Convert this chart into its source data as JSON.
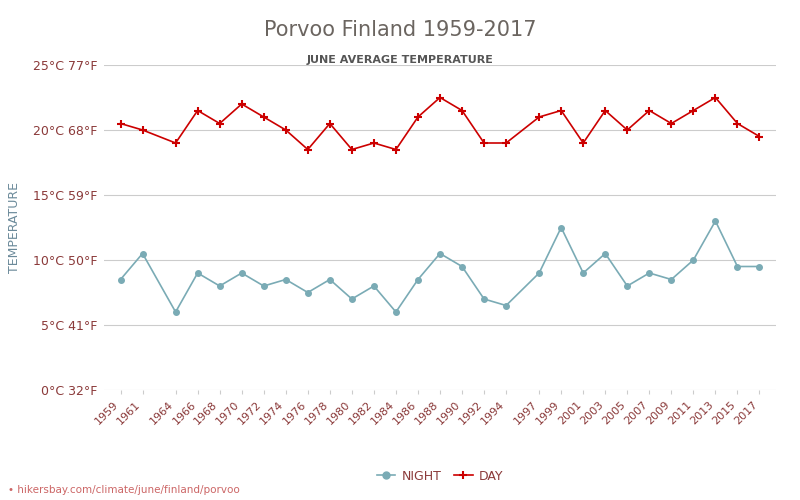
{
  "title": "Porvoo Finland 1959-2017",
  "subtitle": "JUNE AVERAGE TEMPERATURE",
  "ylabel": "TEMPERATURE",
  "footer": "hikersbay.com/climate/june/finland/porvoo",
  "years": [
    1959,
    1961,
    1964,
    1966,
    1968,
    1970,
    1972,
    1974,
    1976,
    1978,
    1980,
    1982,
    1984,
    1986,
    1988,
    1990,
    1992,
    1994,
    1997,
    1999,
    2001,
    2003,
    2005,
    2007,
    2009,
    2011,
    2013,
    2015,
    2017
  ],
  "day_temps": [
    20.5,
    20.0,
    19.0,
    21.5,
    20.5,
    22.0,
    21.0,
    20.0,
    18.5,
    20.5,
    18.5,
    19.0,
    18.5,
    21.0,
    22.5,
    21.5,
    19.0,
    19.0,
    21.0,
    21.5,
    19.0,
    21.5,
    20.0,
    21.5,
    20.5,
    21.5,
    22.5,
    20.5,
    19.5
  ],
  "night_temps": [
    8.5,
    10.5,
    6.0,
    9.0,
    8.0,
    9.0,
    8.0,
    8.5,
    7.5,
    8.5,
    7.0,
    8.0,
    6.0,
    8.5,
    10.5,
    9.5,
    7.0,
    6.5,
    9.0,
    12.5,
    9.0,
    10.5,
    8.0,
    9.0,
    8.5,
    10.0,
    13.0,
    9.5,
    9.5
  ],
  "ylim": [
    0,
    25
  ],
  "yticks_c": [
    0,
    5,
    10,
    15,
    20,
    25
  ],
  "yticks_labels": [
    "0°C 32°F",
    "5°C 41°F",
    "10°C 50°F",
    "15°C 59°F",
    "20°C 68°F",
    "25°C 77°F"
  ],
  "day_color": "#cc0000",
  "night_color": "#7aabb5",
  "title_color": "#6b6560",
  "subtitle_color": "#555555",
  "ylabel_color": "#6b8a9a",
  "tick_color": "#8b3a3a",
  "grid_color": "#cccccc",
  "bg_color": "#ffffff",
  "legend_day_label": "DAY",
  "legend_night_label": "NIGHT"
}
